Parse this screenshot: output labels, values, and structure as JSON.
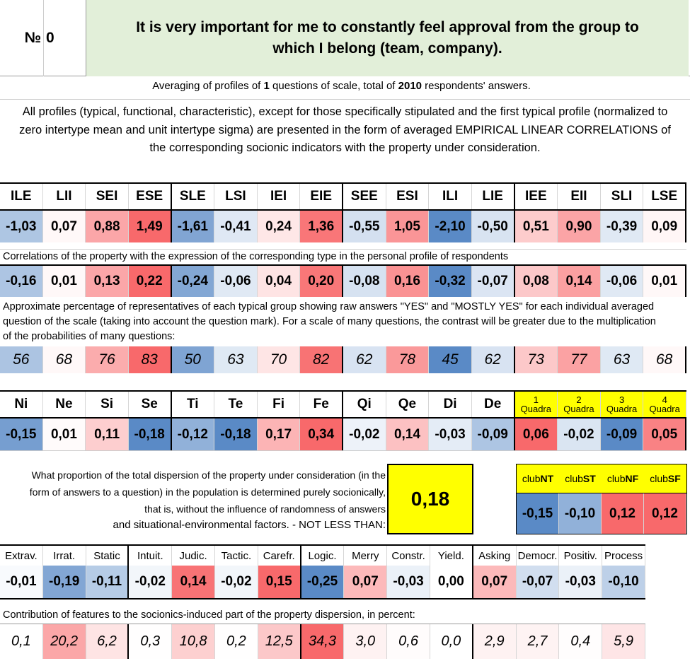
{
  "header": {
    "no_label": "№",
    "no_value": "0",
    "question": "It is very important for me to constantly feel approval from the group to which I belong (team, company)."
  },
  "averaging": {
    "prefix": "Averaging of profiles of ",
    "count": "1",
    "mid": " questions of scale, total of ",
    "total": "2010",
    "suffix": " respondents' answers."
  },
  "intro_text": "All profiles (typical, functional, characteristic), except for those specifically stipulated and the first typical profile (normalized to zero intertype mean and unit intertype sigma) are presented in the form of averaged EMPIRICAL LINEAR CORRELATIONS of the corresponding socionic indicators with the property under consideration.",
  "types": {
    "labels": [
      "ILE",
      "LII",
      "SEI",
      "ESE",
      "SLE",
      "LSI",
      "IEI",
      "EIE",
      "SEE",
      "ESI",
      "ILI",
      "LIE",
      "IEE",
      "EII",
      "SLI",
      "LSE"
    ],
    "normalized": [
      "-1,03",
      "0,07",
      "0,88",
      "1,49",
      "-1,61",
      "-0,41",
      "0,24",
      "1,36",
      "-0,55",
      "1,05",
      "-2,10",
      "-0,50",
      "0,51",
      "0,90",
      "-0,39",
      "0,09"
    ],
    "normalized_num": [
      -1.03,
      0.07,
      0.88,
      1.49,
      -1.61,
      -0.41,
      0.24,
      1.36,
      -0.55,
      1.05,
      -2.1,
      -0.5,
      0.51,
      0.9,
      -0.39,
      0.09
    ],
    "corr_caption": "Correlations of the property with the expression of the corresponding type in the personal profile of respondents",
    "correlations": [
      "-0,16",
      "0,01",
      "0,13",
      "0,22",
      "-0,24",
      "-0,06",
      "0,04",
      "0,20",
      "-0,08",
      "0,16",
      "-0,32",
      "-0,07",
      "0,08",
      "0,14",
      "-0,06",
      "0,01"
    ],
    "correlations_num": [
      -0.16,
      0.01,
      0.13,
      0.22,
      -0.24,
      -0.06,
      0.04,
      0.2,
      -0.08,
      0.16,
      -0.32,
      -0.07,
      0.08,
      0.14,
      -0.06,
      0.01
    ],
    "pct_caption": "Approximate percentage of representatives of each typical group showing raw answers \"YES\" and \"MOSTLY YES\" for each individual averaged question of the scale (taking into account the question mark). For a scale of many questions, the contrast will be greater due to the multiplication of the probabilities of many questions:",
    "percentages": [
      "56",
      "68",
      "76",
      "83",
      "50",
      "63",
      "70",
      "82",
      "62",
      "78",
      "45",
      "62",
      "73",
      "77",
      "63",
      "68"
    ],
    "percentages_num": [
      56,
      68,
      76,
      83,
      50,
      63,
      70,
      82,
      62,
      78,
      45,
      62,
      73,
      77,
      63,
      68
    ]
  },
  "functions": {
    "labels": [
      "Ni",
      "Ne",
      "Si",
      "Se",
      "Ti",
      "Te",
      "Fi",
      "Fe",
      "Qi",
      "Qe",
      "Di",
      "De"
    ],
    "values": [
      "-0,15",
      "0,01",
      "0,11",
      "-0,18",
      "-0,12",
      "-0,18",
      "0,17",
      "0,34",
      "-0,02",
      "0,14",
      "-0,03",
      "-0,09"
    ],
    "values_num": [
      -0.15,
      0.01,
      0.11,
      -0.18,
      -0.12,
      -0.18,
      0.17,
      0.34,
      -0.02,
      0.14,
      -0.03,
      -0.09
    ]
  },
  "quadras": {
    "labels": [
      [
        "1",
        "Quadra"
      ],
      [
        "2",
        "Quadra"
      ],
      [
        "3",
        "Quadra"
      ],
      [
        "4",
        "Quadra"
      ]
    ],
    "values": [
      "0,06",
      "-0,02",
      "-0,09",
      "0,05"
    ],
    "values_num": [
      0.06,
      -0.02,
      -0.09,
      0.05
    ]
  },
  "dispersion": {
    "text": "What proportion of the total dispersion of the property under consideration (in the form of answers to a question) in the population is determined purely socionically, that is, without the influence of randomness of answers",
    "text2": "and situational-environmental factors. - NOT LESS THAN:",
    "value": "0,18"
  },
  "clubs": {
    "labels": [
      [
        "club",
        "NT"
      ],
      [
        "club",
        "ST"
      ],
      [
        "club",
        "NF"
      ],
      [
        "club",
        "SF"
      ]
    ],
    "values": [
      "-0,15",
      "-0,10",
      "0,12",
      "0,12"
    ],
    "values_num": [
      -0.15,
      -0.1,
      0.12,
      0.12
    ]
  },
  "features": {
    "labels": [
      "Extrav.",
      "Irrat.",
      "Static",
      "Intuit.",
      "Judic.",
      "Tactic.",
      "Carefr.",
      "Logic.",
      "Merry",
      "Constr.",
      "Yield.",
      "Asking",
      "Democr.",
      "Positiv.",
      "Process"
    ],
    "values": [
      "-0,01",
      "-0,19",
      "-0,11",
      "-0,02",
      "0,14",
      "-0,02",
      "0,15",
      "-0,25",
      "0,07",
      "-0,03",
      "0,00",
      "0,07",
      "-0,07",
      "-0,03",
      "-0,10"
    ],
    "values_num": [
      -0.01,
      -0.19,
      -0.11,
      -0.02,
      0.14,
      -0.02,
      0.15,
      -0.25,
      0.07,
      -0.03,
      0.0,
      0.07,
      -0.07,
      -0.03,
      -0.1
    ],
    "contrib_caption": "Contribution of features to the socionics-induced part of the property dispersion, in percent:",
    "contributions": [
      "0,1",
      "20,2",
      "6,2",
      "0,3",
      "10,8",
      "0,2",
      "12,5",
      "34,3",
      "3,0",
      "0,6",
      "0,0",
      "2,9",
      "2,7",
      "0,4",
      "5,9"
    ],
    "contributions_num": [
      0.1,
      20.2,
      6.2,
      0.3,
      10.8,
      0.2,
      12.5,
      34.3,
      3.0,
      0.6,
      0.0,
      2.9,
      2.7,
      0.4,
      5.9
    ]
  },
  "colors": {
    "header_bg": "#e2efd9",
    "highlight": "#ffff00",
    "red": "#f8696b",
    "blue": "#5a8ac6"
  }
}
